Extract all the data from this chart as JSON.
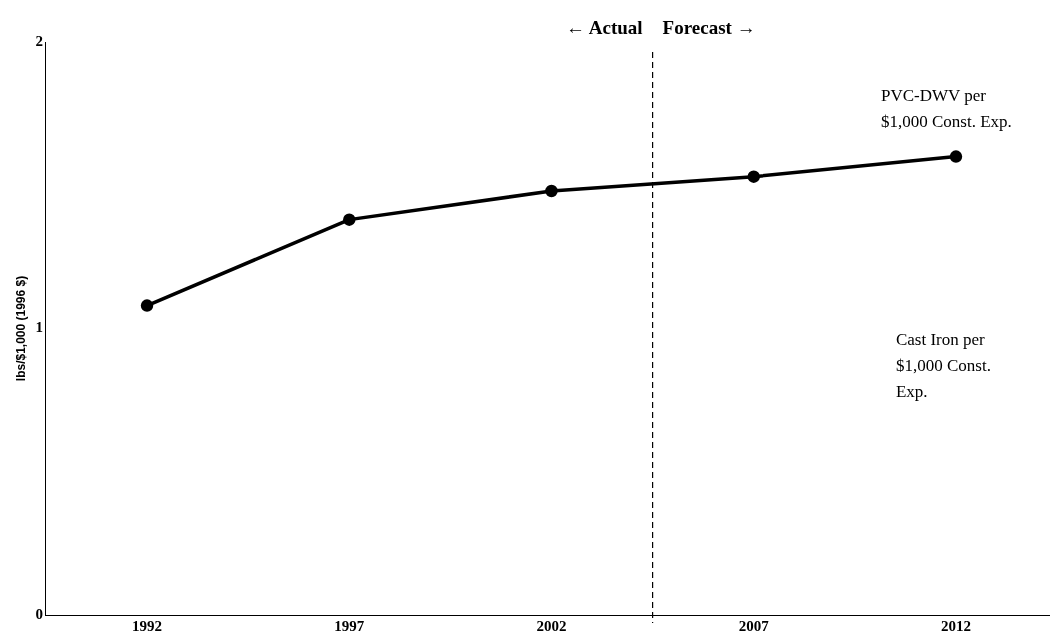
{
  "chart_data": {
    "type": "line",
    "ylabel": "lbs/$1,000 (1996 $)",
    "x": [
      1992,
      1997,
      2002,
      2007,
      2012
    ],
    "series": [
      {
        "name": "PVC-DWV per $1,000 Const. Exp.",
        "color": "#000000",
        "values": [
          1.08,
          1.38,
          1.48,
          1.53,
          1.6
        ]
      }
    ],
    "xlim": [
      1989.5,
      2014.3
    ],
    "xticks": [
      1992,
      1997,
      2002,
      2007,
      2012
    ],
    "ylim": [
      0,
      2
    ],
    "yticks": [
      0,
      1,
      2
    ],
    "ref_lines": [
      {
        "axis": "x",
        "value": 2004.5,
        "color": "#000000",
        "line_style": "dashed"
      }
    ],
    "annotations": [
      "← Actual",
      "Forecast →",
      "Cast Iron per $1,000 Const. Exp."
    ],
    "grid": false,
    "legend": false,
    "marker": "circle",
    "line_style": "solid"
  }
}
